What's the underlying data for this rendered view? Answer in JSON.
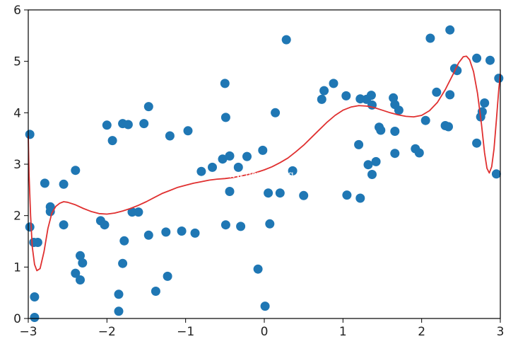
{
  "chart_data": {
    "type": "scatter",
    "title": "",
    "xlabel": "",
    "ylabel": "",
    "xlim": [
      -3,
      3
    ],
    "ylim": [
      0,
      6
    ],
    "grid": false,
    "x_ticks": [
      -3,
      -2,
      -1,
      0,
      1,
      2,
      3
    ],
    "x_tick_labels": [
      "−3",
      "−2",
      "−1",
      "0",
      "1",
      "2",
      "3"
    ],
    "y_ticks": [
      0,
      1,
      2,
      3,
      4,
      5,
      6
    ],
    "y_tick_labels": [
      "0",
      "1",
      "2",
      "3",
      "4",
      "5",
      "6"
    ],
    "series": [
      {
        "kind": "scatter",
        "color": "#1f77b4",
        "points": [
          {
            "x": -2.98,
            "y": 3.58
          },
          {
            "x": -2.98,
            "y": 1.78
          },
          {
            "x": -2.93,
            "y": 1.48
          },
          {
            "x": -2.88,
            "y": 1.48
          },
          {
            "x": -2.92,
            "y": 0.42
          },
          {
            "x": -2.92,
            "y": 0.02
          },
          {
            "x": -2.79,
            "y": 2.63
          },
          {
            "x": -2.72,
            "y": 2.17
          },
          {
            "x": -2.72,
            "y": 2.08
          },
          {
            "x": -2.55,
            "y": 2.61
          },
          {
            "x": -2.55,
            "y": 1.82
          },
          {
            "x": -2.4,
            "y": 2.88
          },
          {
            "x": -2.4,
            "y": 0.88
          },
          {
            "x": -2.34,
            "y": 1.22
          },
          {
            "x": -2.31,
            "y": 1.08
          },
          {
            "x": -2.34,
            "y": 0.75
          },
          {
            "x": -2.08,
            "y": 1.9
          },
          {
            "x": -2.03,
            "y": 1.82
          },
          {
            "x": -2.0,
            "y": 3.76
          },
          {
            "x": -1.93,
            "y": 3.46
          },
          {
            "x": -1.85,
            "y": 0.47
          },
          {
            "x": -1.85,
            "y": 0.14
          },
          {
            "x": -1.8,
            "y": 3.79
          },
          {
            "x": -1.8,
            "y": 1.07
          },
          {
            "x": -1.78,
            "y": 1.51
          },
          {
            "x": -1.73,
            "y": 3.77
          },
          {
            "x": -1.68,
            "y": 2.07
          },
          {
            "x": -1.6,
            "y": 2.07
          },
          {
            "x": -1.53,
            "y": 3.79
          },
          {
            "x": -1.47,
            "y": 4.12
          },
          {
            "x": -1.47,
            "y": 1.62
          },
          {
            "x": -1.38,
            "y": 0.53
          },
          {
            "x": -1.25,
            "y": 1.68
          },
          {
            "x": -1.23,
            "y": 0.82
          },
          {
            "x": -1.2,
            "y": 3.55
          },
          {
            "x": -1.05,
            "y": 1.7
          },
          {
            "x": -0.97,
            "y": 3.65
          },
          {
            "x": -0.88,
            "y": 1.66
          },
          {
            "x": -0.8,
            "y": 2.86
          },
          {
            "x": -0.66,
            "y": 2.94
          },
          {
            "x": -0.53,
            "y": 3.1
          },
          {
            "x": -0.5,
            "y": 4.57
          },
          {
            "x": -0.49,
            "y": 3.91
          },
          {
            "x": -0.49,
            "y": 1.82
          },
          {
            "x": -0.44,
            "y": 3.16
          },
          {
            "x": -0.44,
            "y": 2.47
          },
          {
            "x": -0.33,
            "y": 2.94
          },
          {
            "x": -0.3,
            "y": 1.79
          },
          {
            "x": -0.22,
            "y": 3.15
          },
          {
            "x": -0.08,
            "y": 0.96
          },
          {
            "x": -0.02,
            "y": 3.27
          },
          {
            "x": 0.01,
            "y": 0.24
          },
          {
            "x": 0.05,
            "y": 2.44
          },
          {
            "x": 0.07,
            "y": 1.84
          },
          {
            "x": 0.14,
            "y": 4.0
          },
          {
            "x": 0.2,
            "y": 2.44
          },
          {
            "x": 0.28,
            "y": 5.42
          },
          {
            "x": 0.36,
            "y": 2.87
          },
          {
            "x": 0.5,
            "y": 2.39
          },
          {
            "x": 0.73,
            "y": 4.26
          },
          {
            "x": 0.76,
            "y": 4.43
          },
          {
            "x": 0.88,
            "y": 4.57
          },
          {
            "x": 1.04,
            "y": 4.33
          },
          {
            "x": 1.05,
            "y": 2.4
          },
          {
            "x": 1.2,
            "y": 3.38
          },
          {
            "x": 1.22,
            "y": 2.34
          },
          {
            "x": 1.22,
            "y": 4.27
          },
          {
            "x": 1.3,
            "y": 4.26
          },
          {
            "x": 1.32,
            "y": 2.99
          },
          {
            "x": 1.36,
            "y": 4.34
          },
          {
            "x": 1.37,
            "y": 4.15
          },
          {
            "x": 1.37,
            "y": 2.8
          },
          {
            "x": 1.42,
            "y": 3.05
          },
          {
            "x": 1.46,
            "y": 3.72
          },
          {
            "x": 1.48,
            "y": 3.66
          },
          {
            "x": 1.64,
            "y": 4.29
          },
          {
            "x": 1.66,
            "y": 4.16
          },
          {
            "x": 1.66,
            "y": 3.64
          },
          {
            "x": 1.66,
            "y": 3.21
          },
          {
            "x": 1.71,
            "y": 4.05
          },
          {
            "x": 1.92,
            "y": 3.3
          },
          {
            "x": 1.97,
            "y": 3.22
          },
          {
            "x": 2.05,
            "y": 3.85
          },
          {
            "x": 2.11,
            "y": 5.45
          },
          {
            "x": 2.19,
            "y": 4.4
          },
          {
            "x": 2.3,
            "y": 3.75
          },
          {
            "x": 2.34,
            "y": 3.73
          },
          {
            "x": 2.36,
            "y": 5.61
          },
          {
            "x": 2.36,
            "y": 4.35
          },
          {
            "x": 2.42,
            "y": 4.86
          },
          {
            "x": 2.45,
            "y": 4.82
          },
          {
            "x": 2.7,
            "y": 5.06
          },
          {
            "x": 2.7,
            "y": 3.41
          },
          {
            "x": 2.75,
            "y": 3.92
          },
          {
            "x": 2.77,
            "y": 4.02
          },
          {
            "x": 2.8,
            "y": 4.19
          },
          {
            "x": 2.87,
            "y": 5.02
          },
          {
            "x": 2.95,
            "y": 2.81
          },
          {
            "x": 2.98,
            "y": 4.67
          }
        ]
      },
      {
        "kind": "line",
        "color": "#e03030",
        "points": [
          {
            "x": -3.0,
            "y": 3.55
          },
          {
            "x": -2.99,
            "y": 2.8
          },
          {
            "x": -2.97,
            "y": 2.0
          },
          {
            "x": -2.95,
            "y": 1.4
          },
          {
            "x": -2.92,
            "y": 1.05
          },
          {
            "x": -2.89,
            "y": 0.93
          },
          {
            "x": -2.85,
            "y": 0.97
          },
          {
            "x": -2.8,
            "y": 1.3
          },
          {
            "x": -2.75,
            "y": 1.75
          },
          {
            "x": -2.7,
            "y": 2.05
          },
          {
            "x": -2.65,
            "y": 2.18
          },
          {
            "x": -2.6,
            "y": 2.24
          },
          {
            "x": -2.55,
            "y": 2.27
          },
          {
            "x": -2.5,
            "y": 2.26
          },
          {
            "x": -2.4,
            "y": 2.21
          },
          {
            "x": -2.3,
            "y": 2.14
          },
          {
            "x": -2.2,
            "y": 2.08
          },
          {
            "x": -2.1,
            "y": 2.04
          },
          {
            "x": -2.0,
            "y": 2.03
          },
          {
            "x": -1.9,
            "y": 2.05
          },
          {
            "x": -1.8,
            "y": 2.09
          },
          {
            "x": -1.7,
            "y": 2.14
          },
          {
            "x": -1.6,
            "y": 2.2
          },
          {
            "x": -1.5,
            "y": 2.27
          },
          {
            "x": -1.4,
            "y": 2.35
          },
          {
            "x": -1.3,
            "y": 2.43
          },
          {
            "x": -1.2,
            "y": 2.49
          },
          {
            "x": -1.1,
            "y": 2.55
          },
          {
            "x": -1.0,
            "y": 2.59
          },
          {
            "x": -0.9,
            "y": 2.63
          },
          {
            "x": -0.8,
            "y": 2.66
          },
          {
            "x": -0.7,
            "y": 2.69
          },
          {
            "x": -0.6,
            "y": 2.71
          },
          {
            "x": -0.5,
            "y": 2.72
          },
          {
            "x": -0.4,
            "y": 2.74
          },
          {
            "x": -0.3,
            "y": 2.77
          },
          {
            "x": -0.2,
            "y": 2.8
          },
          {
            "x": -0.1,
            "y": 2.84
          },
          {
            "x": 0.0,
            "y": 2.89
          },
          {
            "x": 0.1,
            "y": 2.95
          },
          {
            "x": 0.2,
            "y": 3.03
          },
          {
            "x": 0.3,
            "y": 3.12
          },
          {
            "x": 0.4,
            "y": 3.24
          },
          {
            "x": 0.5,
            "y": 3.37
          },
          {
            "x": 0.6,
            "y": 3.52
          },
          {
            "x": 0.7,
            "y": 3.67
          },
          {
            "x": 0.8,
            "y": 3.82
          },
          {
            "x": 0.9,
            "y": 3.95
          },
          {
            "x": 1.0,
            "y": 4.05
          },
          {
            "x": 1.1,
            "y": 4.11
          },
          {
            "x": 1.2,
            "y": 4.14
          },
          {
            "x": 1.3,
            "y": 4.13
          },
          {
            "x": 1.4,
            "y": 4.1
          },
          {
            "x": 1.5,
            "y": 4.05
          },
          {
            "x": 1.6,
            "y": 4.0
          },
          {
            "x": 1.7,
            "y": 3.96
          },
          {
            "x": 1.8,
            "y": 3.93
          },
          {
            "x": 1.9,
            "y": 3.92
          },
          {
            "x": 2.0,
            "y": 3.95
          },
          {
            "x": 2.1,
            "y": 4.04
          },
          {
            "x": 2.2,
            "y": 4.2
          },
          {
            "x": 2.3,
            "y": 4.45
          },
          {
            "x": 2.4,
            "y": 4.75
          },
          {
            "x": 2.47,
            "y": 4.97
          },
          {
            "x": 2.53,
            "y": 5.09
          },
          {
            "x": 2.57,
            "y": 5.1
          },
          {
            "x": 2.61,
            "y": 5.03
          },
          {
            "x": 2.66,
            "y": 4.8
          },
          {
            "x": 2.71,
            "y": 4.38
          },
          {
            "x": 2.76,
            "y": 3.78
          },
          {
            "x": 2.8,
            "y": 3.22
          },
          {
            "x": 2.83,
            "y": 2.92
          },
          {
            "x": 2.86,
            "y": 2.83
          },
          {
            "x": 2.89,
            "y": 2.95
          },
          {
            "x": 2.92,
            "y": 3.3
          },
          {
            "x": 2.95,
            "y": 3.85
          },
          {
            "x": 2.98,
            "y": 4.45
          },
          {
            "x": 3.0,
            "y": 4.75
          }
        ]
      }
    ]
  },
  "watermark": "www.devtalking.com"
}
